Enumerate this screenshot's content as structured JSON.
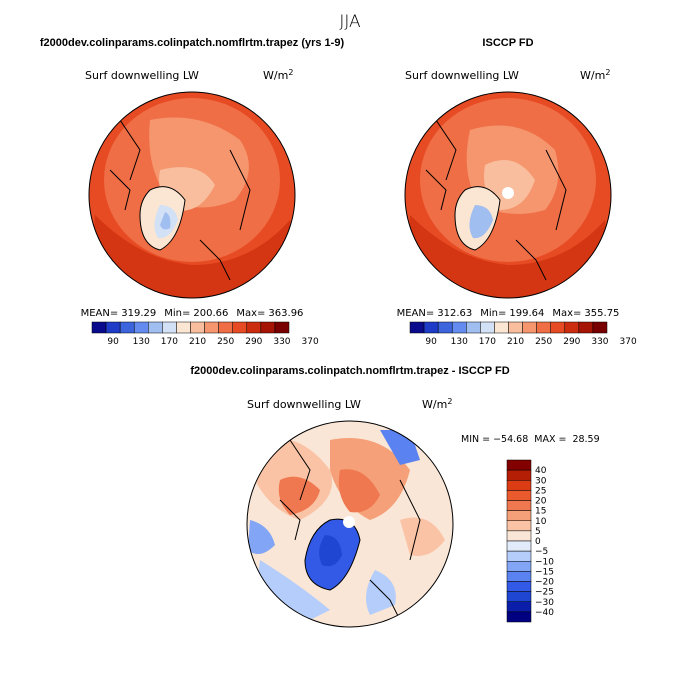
{
  "title": "JJA",
  "colors": {
    "abs_scale": [
      "#0a0a8c",
      "#1e3cc8",
      "#3c64dc",
      "#648cf0",
      "#a0bef0",
      "#d2e1f5",
      "#fae6d2",
      "#f8be9e",
      "#f5966e",
      "#f06e46",
      "#e64b23",
      "#cd2d0f",
      "#a51405",
      "#780000"
    ],
    "diff_scale": [
      "#000080",
      "#0a1eaa",
      "#1e46d2",
      "#325ae6",
      "#5a82f0",
      "#82a5f5",
      "#b4cdfa",
      "#e1ebfa",
      "#fae6d7",
      "#fac3a5",
      "#f5a078",
      "#f07850",
      "#eb5a2d",
      "#dc3c14",
      "#b41e05",
      "#820000"
    ],
    "land_abs": "#f0dcc8",
    "land_diff": "#5a82f0"
  },
  "chart_data": [
    {
      "type": "heatmap",
      "title": "f2000dev.colinparams.colinpatch.nomflrtm.trapez (yrs 1-9)",
      "variable": "Surf downwelling LW",
      "units": "W/m",
      "units_sup": "2",
      "stats": {
        "mean_label": "MEAN=",
        "mean": "319.29",
        "min_label": "Min=",
        "min": "200.66",
        "max_label": "Max=",
        "max": "363.96"
      },
      "colorbar_ticks": [
        "90",
        "130",
        "170",
        "210",
        "250",
        "290",
        "330",
        "370"
      ]
    },
    {
      "type": "heatmap",
      "title": "ISCCP FD",
      "variable": "Surf downwelling LW",
      "units": "W/m",
      "units_sup": "2",
      "stats": {
        "mean_label": "MEAN=",
        "mean": "312.63",
        "min_label": "Min=",
        "min": "199.64",
        "max_label": "Max=",
        "max": "355.75"
      },
      "colorbar_ticks": [
        "90",
        "130",
        "170",
        "210",
        "250",
        "290",
        "330",
        "370"
      ]
    },
    {
      "type": "heatmap",
      "title": "f2000dev.colinparams.colinpatch.nomflrtm.trapez - ISCCP FD",
      "variable": "Surf downwelling LW",
      "units": "W/m",
      "units_sup": "2",
      "stats": {
        "min_label": "MIN =",
        "min": "−54.68",
        "max_label": "MAX =",
        "max": "28.59"
      },
      "colorbar_ticks": [
        "40",
        "30",
        "25",
        "20",
        "15",
        "10",
        "5",
        "0",
        "−5",
        "−10",
        "−15",
        "−20",
        "−25",
        "−30",
        "−40"
      ]
    }
  ]
}
